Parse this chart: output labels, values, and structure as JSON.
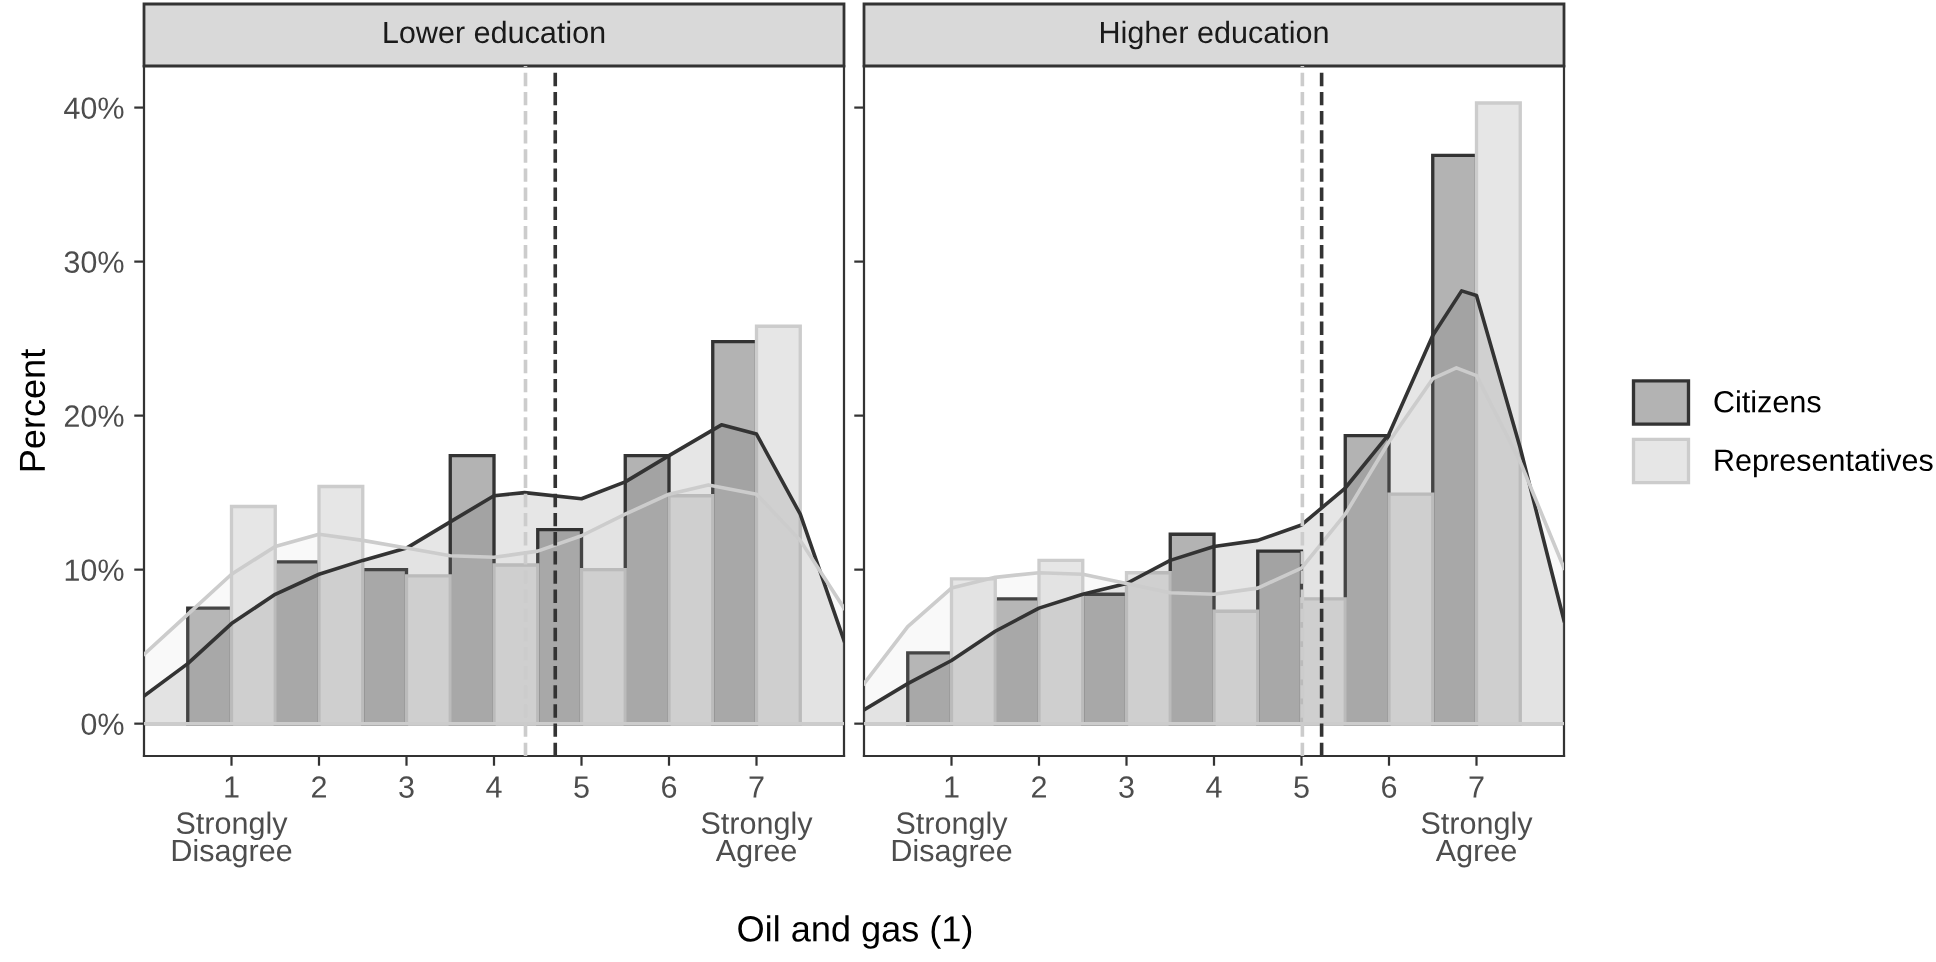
{
  "chart_data": [
    {
      "type": "bar",
      "title": "Lower education",
      "xlabel": "Oil and gas (1)",
      "ylabel": "Percent",
      "x": [
        1,
        2,
        3,
        4,
        5,
        6,
        7
      ],
      "series": [
        {
          "color": "#b3b3b3",
          "values": [
            7.5,
            10.5,
            10.0,
            17.4,
            12.6,
            17.4,
            24.8
          ]
        },
        {
          "color": "#e6e6e6",
          "values": [
            14.1,
            15.4,
            9.6,
            10.3,
            10.0,
            14.8,
            25.8
          ]
        },
        {
          "type": "area",
          "color": "#333333",
          "x": [
            0,
            0.5,
            1,
            1.5,
            2,
            2.5,
            3,
            3.5,
            4,
            4.35,
            5,
            5.5,
            6,
            6.6,
            7,
            7.5,
            8
          ],
          "values": [
            1.8,
            3.9,
            6.5,
            8.4,
            9.7,
            10.6,
            11.4,
            13.1,
            14.8,
            15.0,
            14.6,
            15.7,
            17.4,
            19.4,
            18.8,
            13.6,
            5.4
          ]
        },
        {
          "type": "area",
          "color": "#cccccc",
          "x": [
            0,
            0.5,
            1,
            1.5,
            2,
            2.5,
            3,
            3.5,
            4,
            4.5,
            5,
            5.5,
            6,
            6.45,
            7,
            7.5,
            8
          ],
          "values": [
            4.5,
            7.1,
            9.7,
            11.5,
            12.3,
            11.9,
            11.4,
            10.9,
            10.8,
            11.2,
            12.2,
            13.6,
            14.9,
            15.5,
            14.9,
            11.9,
            7.5
          ]
        }
      ],
      "ref_lines": [
        {
          "axis": "x",
          "value": 4.7,
          "color": "#333333",
          "line_style": "dashed"
        },
        {
          "axis": "x",
          "value": 4.36,
          "color": "#cccccc",
          "line_style": "dashed"
        }
      ],
      "xlim": [
        0,
        8
      ],
      "ylim": [
        -2.1,
        42.7
      ],
      "xticks": [
        1,
        2,
        3,
        4,
        5,
        6,
        7
      ],
      "annotations": [
        "Strongly\nDisagree",
        "Strongly\nAgree"
      ],
      "yticks": [
        {
          "value": 0,
          "label": "0%"
        },
        {
          "value": 10,
          "label": "10%"
        },
        {
          "value": 20,
          "label": "20%"
        },
        {
          "value": 30,
          "label": "30%"
        },
        {
          "value": 40,
          "label": "40%"
        }
      ],
      "grid": false
    },
    {
      "type": "bar",
      "title": "Higher education",
      "x": [
        1,
        2,
        3,
        4,
        5,
        6,
        7
      ],
      "series": [
        {
          "name": "Citizens",
          "color": "#b3b3b3",
          "values": [
            4.6,
            8.1,
            8.4,
            12.3,
            11.2,
            18.7,
            36.9
          ]
        },
        {
          "name": "Representatives",
          "color": "#e6e6e6",
          "values": [
            9.4,
            10.6,
            9.8,
            7.3,
            8.1,
            14.9,
            40.3
          ]
        },
        {
          "type": "area",
          "color": "#333333",
          "x": [
            0,
            0.5,
            1,
            1.5,
            2,
            2.5,
            3,
            3.5,
            4,
            4.5,
            5,
            5.5,
            6,
            6.5,
            6.83,
            7,
            7.5,
            8
          ],
          "values": [
            0.9,
            2.6,
            4.1,
            6.0,
            7.5,
            8.4,
            9.1,
            10.6,
            11.5,
            11.9,
            12.9,
            15.3,
            18.8,
            25.2,
            28.1,
            27.8,
            17.9,
            6.7
          ]
        },
        {
          "type": "area",
          "color": "#cccccc",
          "x": [
            0,
            0.5,
            1,
            1.5,
            2,
            2.5,
            3,
            3.5,
            4,
            4.5,
            5,
            5.5,
            6,
            6.5,
            6.77,
            7,
            7.5,
            8
          ],
          "values": [
            2.6,
            6.3,
            8.8,
            9.5,
            9.8,
            9.7,
            9.1,
            8.5,
            8.4,
            8.8,
            10.1,
            13.6,
            18.3,
            22.4,
            23.1,
            22.6,
            17.0,
            10.1
          ]
        }
      ],
      "ref_lines": [
        {
          "axis": "x",
          "value": 5.23,
          "color": "#333333",
          "line_style": "dashed"
        },
        {
          "axis": "x",
          "value": 5.01,
          "color": "#cccccc",
          "line_style": "dashed"
        }
      ],
      "xlim": [
        0,
        8
      ],
      "ylim": [
        -2.1,
        42.7
      ],
      "xticks": [
        1,
        2,
        3,
        4,
        5,
        6,
        7
      ],
      "annotations": [
        "Strongly\nDisagree",
        "Strongly\nAgree"
      ],
      "yticks": [
        {
          "value": 0,
          "label": null
        },
        {
          "value": 10,
          "label": null
        },
        {
          "value": 20,
          "label": null
        },
        {
          "value": 30,
          "label": null
        },
        {
          "value": 40,
          "label": null
        }
      ],
      "tick_labels": "x",
      "grid": false,
      "legend": "right"
    }
  ]
}
